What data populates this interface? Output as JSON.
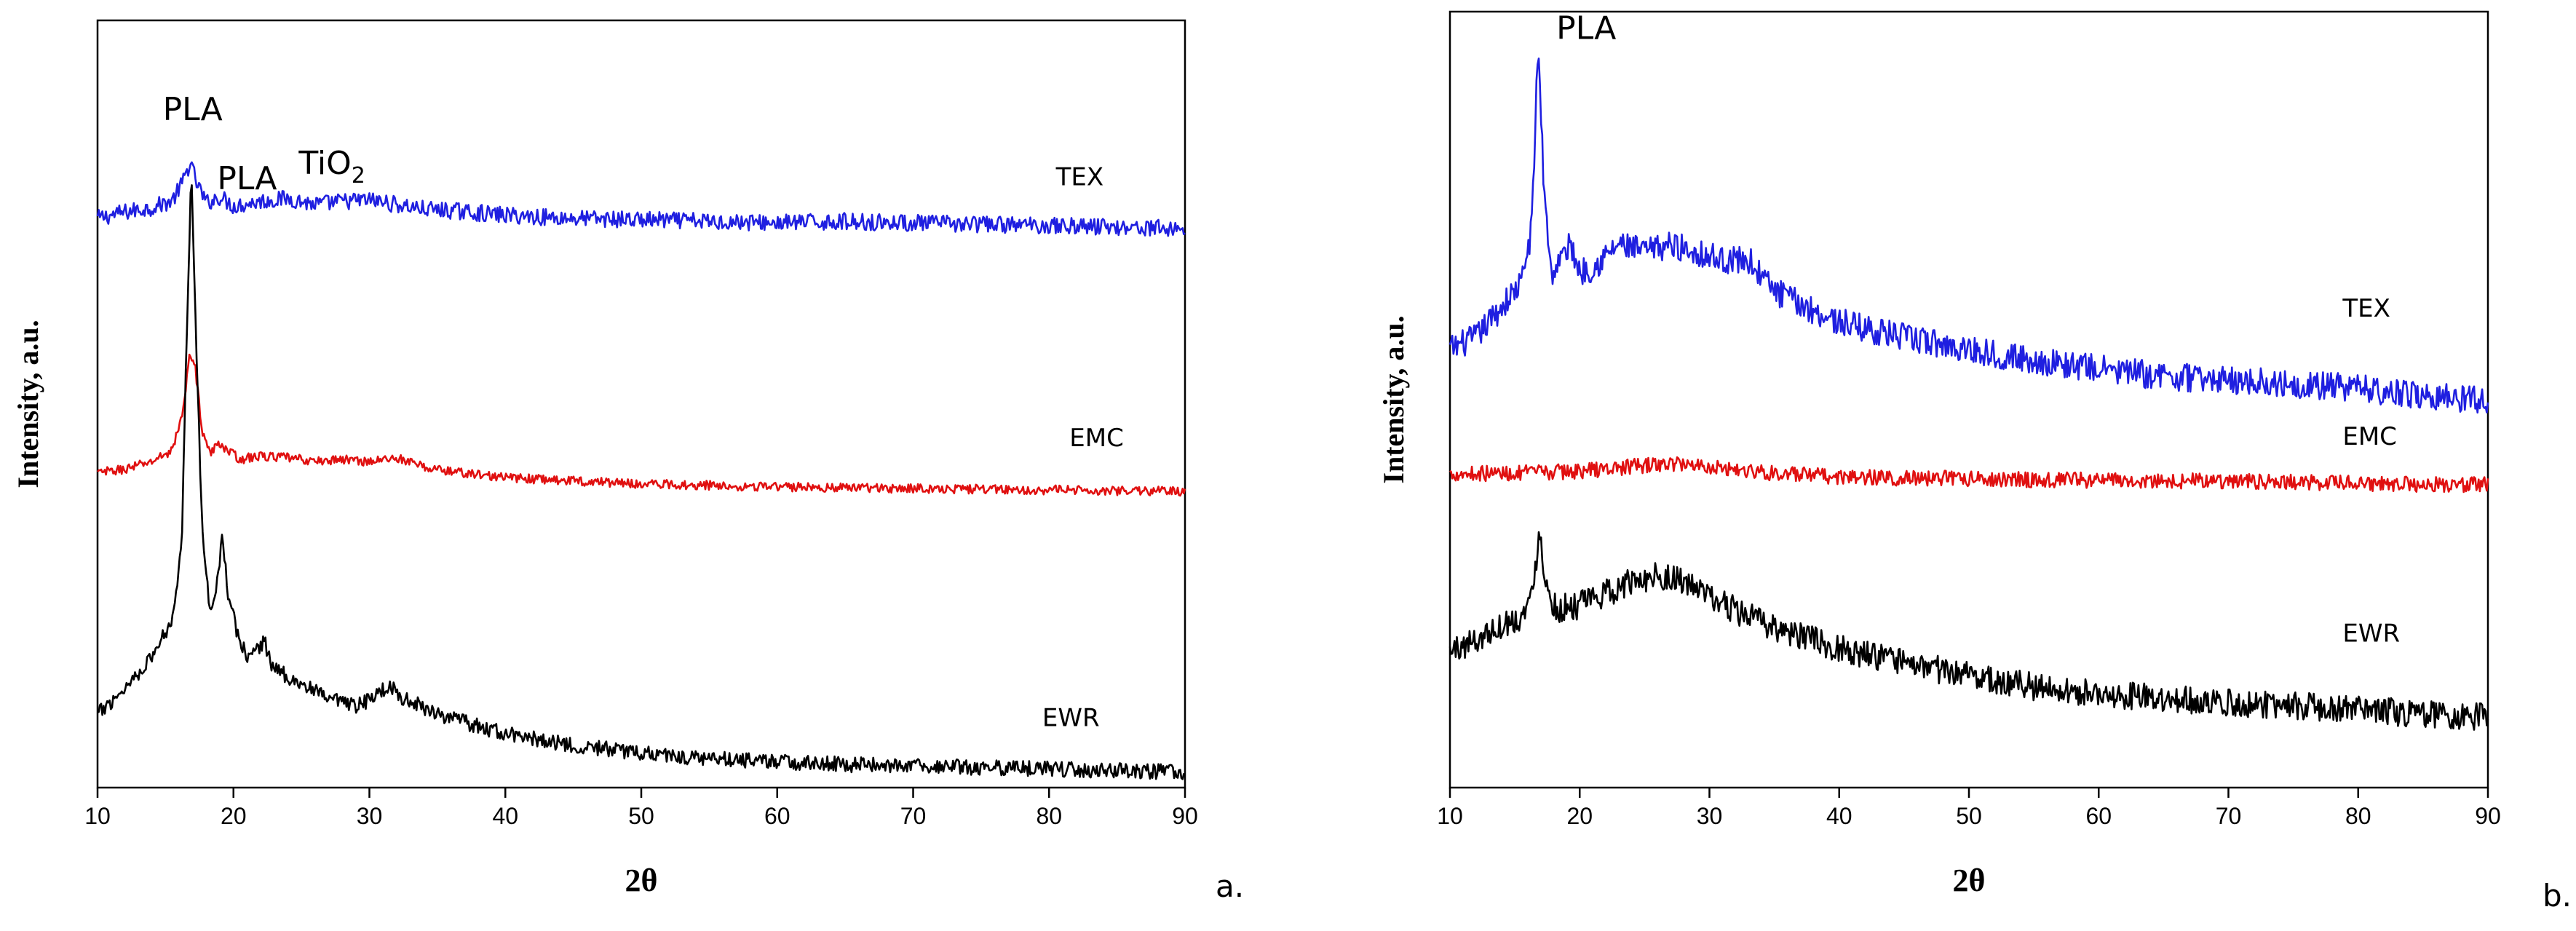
{
  "chart_data": [
    {
      "type": "line",
      "panel_label": "a.",
      "title": "",
      "xlabel": "2θ",
      "ylabel": "Intensity, a.u.",
      "xlim": [
        10,
        90
      ],
      "ylim": [
        0,
        1
      ],
      "xticks": [
        10,
        20,
        30,
        40,
        50,
        60,
        70,
        80,
        90
      ],
      "grid": false,
      "legend": "none",
      "series": [
        {
          "name": "TEX",
          "color": "#1f1fe0",
          "noise": 0.011,
          "x": [
            10,
            12,
            14,
            15.5,
            16.3,
            16.8,
            17.3,
            18,
            19,
            20,
            22,
            24,
            26,
            28,
            30,
            32,
            34,
            36,
            40,
            45,
            50,
            55,
            60,
            65,
            70,
            75,
            80,
            85,
            90
          ],
          "y": [
            0.742,
            0.75,
            0.756,
            0.765,
            0.79,
            0.815,
            0.788,
            0.762,
            0.77,
            0.758,
            0.764,
            0.768,
            0.76,
            0.764,
            0.766,
            0.76,
            0.754,
            0.752,
            0.746,
            0.742,
            0.74,
            0.738,
            0.736,
            0.738,
            0.736,
            0.734,
            0.733,
            0.731,
            0.728
          ]
        },
        {
          "name": "EMC",
          "color": "#e01010",
          "noise": 0.006,
          "x": [
            10,
            12,
            14,
            15.5,
            16.3,
            16.8,
            17.2,
            17.7,
            18.3,
            19,
            19.5,
            20.5,
            22,
            24,
            26,
            28,
            30,
            32,
            34,
            36,
            40,
            45,
            50,
            55,
            60,
            65,
            70,
            75,
            80,
            85,
            90
          ],
          "y": [
            0.41,
            0.415,
            0.425,
            0.44,
            0.49,
            0.57,
            0.545,
            0.465,
            0.435,
            0.45,
            0.44,
            0.428,
            0.432,
            0.43,
            0.425,
            0.428,
            0.425,
            0.43,
            0.418,
            0.412,
            0.404,
            0.4,
            0.396,
            0.394,
            0.392,
            0.391,
            0.39,
            0.389,
            0.388,
            0.387,
            0.386
          ]
        },
        {
          "name": "EWR",
          "color": "#000000",
          "noise": 0.01,
          "x": [
            10,
            12,
            14,
            15.5,
            16.2,
            16.6,
            16.9,
            17.2,
            17.7,
            18.3,
            18.8,
            19.2,
            19.6,
            20.3,
            21,
            22.3,
            22.8,
            23.5,
            25,
            27,
            29,
            30.5,
            31.5,
            32.5,
            34,
            36,
            38,
            40,
            45,
            50,
            55,
            60,
            65,
            70,
            75,
            80,
            85,
            90
          ],
          "y": [
            0.095,
            0.13,
            0.17,
            0.22,
            0.32,
            0.62,
            0.81,
            0.62,
            0.33,
            0.23,
            0.27,
            0.33,
            0.25,
            0.2,
            0.17,
            0.19,
            0.16,
            0.15,
            0.135,
            0.115,
            0.105,
            0.12,
            0.135,
            0.115,
            0.105,
            0.09,
            0.08,
            0.07,
            0.055,
            0.045,
            0.038,
            0.034,
            0.03,
            0.028,
            0.026,
            0.024,
            0.022,
            0.02
          ]
        }
      ],
      "curve_labels": [
        {
          "text": "TEX",
          "x": 80.5,
          "y": 0.785,
          "color": "#000000"
        },
        {
          "text": "EMC",
          "x": 81.5,
          "y": 0.445,
          "color": "#000000"
        },
        {
          "text": "EWR",
          "x": 79.5,
          "y": 0.08,
          "color": "#000000"
        }
      ],
      "annotations": [
        {
          "text": "PLA",
          "x": 14.8,
          "y": 0.87,
          "color": "#000000"
        },
        {
          "text": "PLA",
          "x": 18.8,
          "y": 0.78,
          "color": "#000000"
        },
        {
          "text": "TiO",
          "subscript": "2",
          "x": 24.8,
          "y": 0.8,
          "color": "#000000"
        }
      ]
    },
    {
      "type": "line",
      "panel_label": "b.",
      "title": "",
      "xlabel": "2θ",
      "ylabel": "Intensity, a.u.",
      "xlim": [
        10,
        90
      ],
      "ylim": [
        0,
        1
      ],
      "xticks": [
        10,
        20,
        30,
        40,
        50,
        60,
        70,
        80,
        90
      ],
      "grid": false,
      "legend": "none",
      "series": [
        {
          "name": "TEX",
          "color": "#1f1fe0",
          "noise": 0.018,
          "x": [
            10,
            12,
            14,
            15.5,
            16.3,
            16.8,
            17.2,
            17.8,
            18.5,
            19.3,
            20,
            21,
            23,
            25,
            27,
            29,
            31,
            33,
            35,
            38,
            40,
            45,
            50,
            55,
            60,
            65,
            70,
            75,
            80,
            85,
            90
          ],
          "y": [
            0.565,
            0.58,
            0.62,
            0.65,
            0.72,
            0.96,
            0.79,
            0.66,
            0.68,
            0.7,
            0.665,
            0.67,
            0.7,
            0.69,
            0.7,
            0.69,
            0.68,
            0.68,
            0.64,
            0.615,
            0.6,
            0.58,
            0.565,
            0.55,
            0.54,
            0.53,
            0.525,
            0.52,
            0.515,
            0.505,
            0.5
          ]
        },
        {
          "name": "EMC",
          "color": "#e01010",
          "noise": 0.01,
          "x": [
            10,
            15,
            20,
            25,
            28,
            31,
            35,
            40,
            50,
            60,
            70,
            80,
            90
          ],
          "y": [
            0.405,
            0.405,
            0.408,
            0.415,
            0.418,
            0.412,
            0.405,
            0.4,
            0.398,
            0.396,
            0.395,
            0.392,
            0.39
          ]
        },
        {
          "name": "EWR",
          "color": "#000000",
          "noise": 0.018,
          "x": [
            10,
            12,
            14,
            15.5,
            16.4,
            16.9,
            17.4,
            18.2,
            20,
            22,
            24,
            26,
            28,
            30,
            33,
            36,
            40,
            45,
            50,
            55,
            60,
            65,
            70,
            75,
            80,
            85,
            90
          ],
          "y": [
            0.175,
            0.19,
            0.21,
            0.22,
            0.25,
            0.34,
            0.26,
            0.23,
            0.235,
            0.25,
            0.265,
            0.275,
            0.265,
            0.245,
            0.22,
            0.2,
            0.18,
            0.16,
            0.145,
            0.13,
            0.12,
            0.115,
            0.11,
            0.105,
            0.1,
            0.095,
            0.09
          ]
        }
      ],
      "curve_labels": [
        {
          "text": "TEX",
          "x": 78.8,
          "y": 0.607,
          "color": "#000000"
        },
        {
          "text": "EMC",
          "x": 78.8,
          "y": 0.442,
          "color": "#000000"
        },
        {
          "text": "EWR",
          "x": 78.8,
          "y": 0.188,
          "color": "#000000"
        }
      ],
      "annotations": [
        {
          "text": "PLA",
          "x": 18.2,
          "y": 0.965,
          "color": "#000000"
        }
      ]
    }
  ]
}
